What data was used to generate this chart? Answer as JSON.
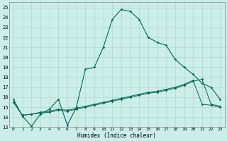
{
  "xlabel": "Humidex (Indice chaleur)",
  "bg_color": "#cceee8",
  "grid_color": "#b0d8cc",
  "line_color": "#006655",
  "xlim": [
    0,
    23
  ],
  "ylim": [
    13,
    25.5
  ],
  "yticks": [
    13,
    14,
    15,
    16,
    17,
    18,
    19,
    20,
    21,
    22,
    23,
    24,
    25
  ],
  "xticks": [
    0,
    1,
    2,
    3,
    4,
    5,
    6,
    7,
    8,
    9,
    10,
    11,
    12,
    13,
    14,
    15,
    16,
    17,
    18,
    19,
    20,
    21,
    22,
    23
  ],
  "series1_y": [
    15.8,
    14.1,
    13.1,
    14.3,
    14.8,
    15.8,
    13.2,
    15.0,
    18.8,
    19.0,
    21.0,
    23.8,
    24.8,
    24.6,
    23.8,
    22.0,
    21.5,
    21.2,
    19.8,
    19.0,
    18.3,
    17.4,
    17.0,
    15.8
  ],
  "series2_y": [
    15.5,
    14.2,
    14.3,
    14.4,
    14.5,
    14.7,
    14.6,
    14.8,
    15.0,
    15.2,
    15.4,
    15.6,
    15.8,
    16.0,
    16.2,
    16.4,
    16.5,
    16.7,
    16.9,
    17.2,
    17.6,
    17.8,
    15.3,
    15.1
  ],
  "series3_y": [
    15.5,
    14.2,
    14.3,
    14.5,
    14.6,
    14.8,
    14.7,
    14.9,
    15.1,
    15.3,
    15.5,
    15.7,
    15.9,
    16.1,
    16.3,
    16.5,
    16.6,
    16.8,
    17.0,
    17.3,
    17.7,
    15.3,
    15.2,
    15.0
  ]
}
